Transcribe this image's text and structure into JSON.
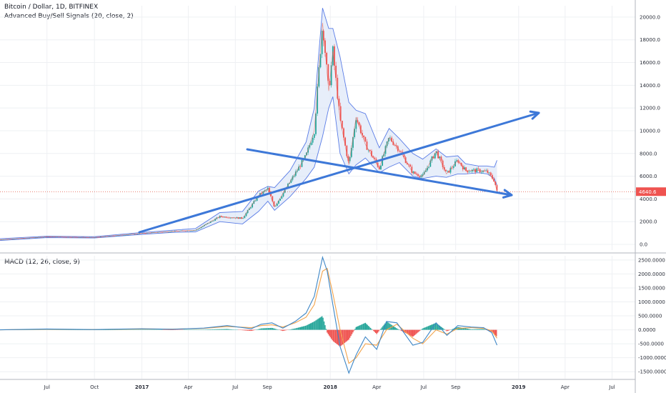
{
  "header": {
    "title": "Bitcoin / Dollar, 1D, BITFINEX",
    "indicator": "Advanced Buy/Sell Signals (20, close, 2)"
  },
  "macd": {
    "label": "MACD (12, 26, close, 9)"
  },
  "colors": {
    "up": "#26a69a",
    "down": "#ef5350",
    "band": "#5a7ce6",
    "band_fill": "#d7e3f7",
    "trend_arrow": "#3d78d8",
    "macd_line": "#3d86c6",
    "signal_line": "#f2a34b",
    "price_line": "#e25141"
  },
  "chart_data": [
    {
      "type": "line",
      "title": "Bitcoin / Dollar, 1D, BITFINEX",
      "x_ticks": [
        "Jul",
        "Oct",
        "2017",
        "Apr",
        "Jul",
        "Sep",
        "2018",
        "Apr",
        "Jul",
        "Sep",
        "2019",
        "Apr",
        "Jul"
      ],
      "y_ticks": [
        "0.0",
        "2000.0",
        "4000.0",
        "6000.0",
        "8000.0",
        "10000.0",
        "12000.0",
        "14000.0",
        "16000.0",
        "18000.0",
        "20000.0"
      ],
      "ylim": [
        -500,
        21000
      ],
      "last_price": "4640.6",
      "x": [
        "2016-04-01",
        "2016-07-01",
        "2016-10-01",
        "2017-01-01",
        "2017-03-01",
        "2017-04-15",
        "2017-06-01",
        "2017-07-15",
        "2017-08-15",
        "2017-09-02",
        "2017-09-15",
        "2017-10-15",
        "2017-11-15",
        "2017-12-01",
        "2017-12-17",
        "2017-12-29",
        "2018-01-06",
        "2018-01-20",
        "2018-02-06",
        "2018-02-20",
        "2018-03-10",
        "2018-04-06",
        "2018-04-25",
        "2018-05-15",
        "2018-06-10",
        "2018-06-29",
        "2018-07-25",
        "2018-08-14",
        "2018-09-05",
        "2018-09-20",
        "2018-10-15",
        "2018-11-01",
        "2018-11-15",
        "2018-11-20"
      ],
      "series": [
        {
          "values": [
            420,
            670,
            620,
            970,
            1150,
            1250,
            2450,
            2300,
            4300,
            4900,
            3300,
            5500,
            7800,
            10000,
            19500,
            13500,
            17000,
            11000,
            7000,
            11200,
            8800,
            6700,
            9400,
            8300,
            6300,
            6000,
            8200,
            6200,
            7400,
            6500,
            6500,
            6400,
            5600,
            4640
          ]
        },
        {
          "values": [
            500,
            720,
            680,
            1050,
            1250,
            1400,
            2800,
            2900,
            4700,
            5100,
            5000,
            6500,
            9000,
            12000,
            20800,
            19000,
            19000,
            16500,
            12500,
            11800,
            11500,
            8500,
            10200,
            9300,
            8000,
            7500,
            8400,
            7700,
            7800,
            7100,
            6900,
            6900,
            6800,
            7400
          ]
        },
        {
          "values": [
            340,
            600,
            560,
            880,
            1050,
            1100,
            2000,
            1800,
            2900,
            3800,
            3000,
            4200,
            5800,
            6800,
            9500,
            12000,
            13000,
            8000,
            6200,
            7000,
            7600,
            6300,
            6800,
            7200,
            6000,
            5800,
            6000,
            5900,
            6200,
            6200,
            6300,
            6200,
            5800,
            5200
          ]
        }
      ],
      "annotations": [
        "trend arrow up",
        "trend arrow down"
      ]
    },
    {
      "type": "line",
      "title": "MACD (12, 26, close, 9)",
      "y_ticks": [
        "-1500.0000",
        "-1000.0000",
        "-500.0000",
        "0.0000",
        "500.0000",
        "1000.0000",
        "1500.0000",
        "2000.0000",
        "2500.0000"
      ],
      "ylim": [
        -1750,
        2650
      ],
      "x": [
        "2016-04-01",
        "2016-07-01",
        "2016-10-01",
        "2017-01-01",
        "2017-03-01",
        "2017-05-01",
        "2017-06-15",
        "2017-08-01",
        "2017-08-20",
        "2017-09-10",
        "2017-10-01",
        "2017-10-25",
        "2017-11-15",
        "2017-12-01",
        "2017-12-17",
        "2017-12-26",
        "2018-01-06",
        "2018-01-20",
        "2018-02-06",
        "2018-02-20",
        "2018-03-10",
        "2018-04-01",
        "2018-04-20",
        "2018-05-10",
        "2018-06-10",
        "2018-06-29",
        "2018-07-25",
        "2018-08-15",
        "2018-09-05",
        "2018-10-01",
        "2018-10-25",
        "2018-11-10",
        "2018-11-20"
      ],
      "series": [
        {
          "values": [
            0,
            30,
            10,
            40,
            20,
            60,
            150,
            40,
            200,
            250,
            60,
            300,
            600,
            1200,
            2600,
            2100,
            900,
            -600,
            -1550,
            -900,
            -250,
            -700,
            300,
            250,
            -550,
            -450,
            250,
            -200,
            150,
            100,
            80,
            -100,
            -550
          ]
        },
        {
          "values": [
            0,
            20,
            10,
            30,
            25,
            50,
            120,
            80,
            150,
            180,
            100,
            250,
            450,
            900,
            2100,
            2200,
            1300,
            0,
            -1200,
            -1000,
            -500,
            -550,
            0,
            200,
            -300,
            -500,
            0,
            -150,
            50,
            80,
            50,
            -30,
            -300
          ]
        }
      ]
    }
  ]
}
